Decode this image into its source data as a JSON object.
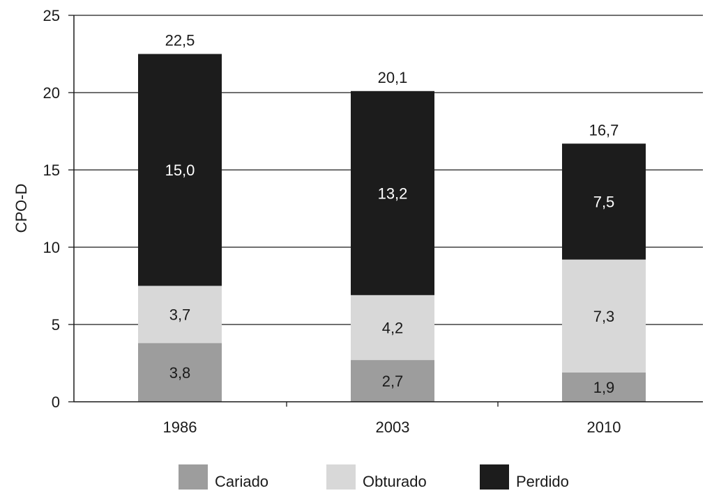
{
  "chart_data": {
    "type": "bar",
    "stacked": true,
    "title": "",
    "xlabel": "",
    "ylabel": "CPO-D",
    "ylim": [
      0,
      25
    ],
    "yticks": [
      0,
      5,
      10,
      15,
      20,
      25
    ],
    "grid": true,
    "legend_position": "bottom",
    "categories": [
      "1986",
      "2003",
      "2010"
    ],
    "series": [
      {
        "name": "Cariado",
        "values": [
          3.8,
          2.7,
          1.9
        ],
        "labels": [
          "3,8",
          "2,7",
          "1,9"
        ],
        "color": "#9d9d9d",
        "label_color": "#1a1a1a"
      },
      {
        "name": "Obturado",
        "values": [
          3.7,
          4.2,
          7.3
        ],
        "labels": [
          "3,7",
          "4,2",
          "7,3"
        ],
        "color": "#d8d8d8",
        "label_color": "#1a1a1a"
      },
      {
        "name": "Perdido",
        "values": [
          15.0,
          13.2,
          7.5
        ],
        "labels": [
          "15,0",
          "13,2",
          "7,5"
        ],
        "color": "#1c1c1c",
        "label_color": "#ffffff"
      }
    ],
    "totals": [
      "22,5",
      "20,1",
      "16,7"
    ],
    "total_values": [
      22.5,
      20.1,
      16.7
    ]
  }
}
